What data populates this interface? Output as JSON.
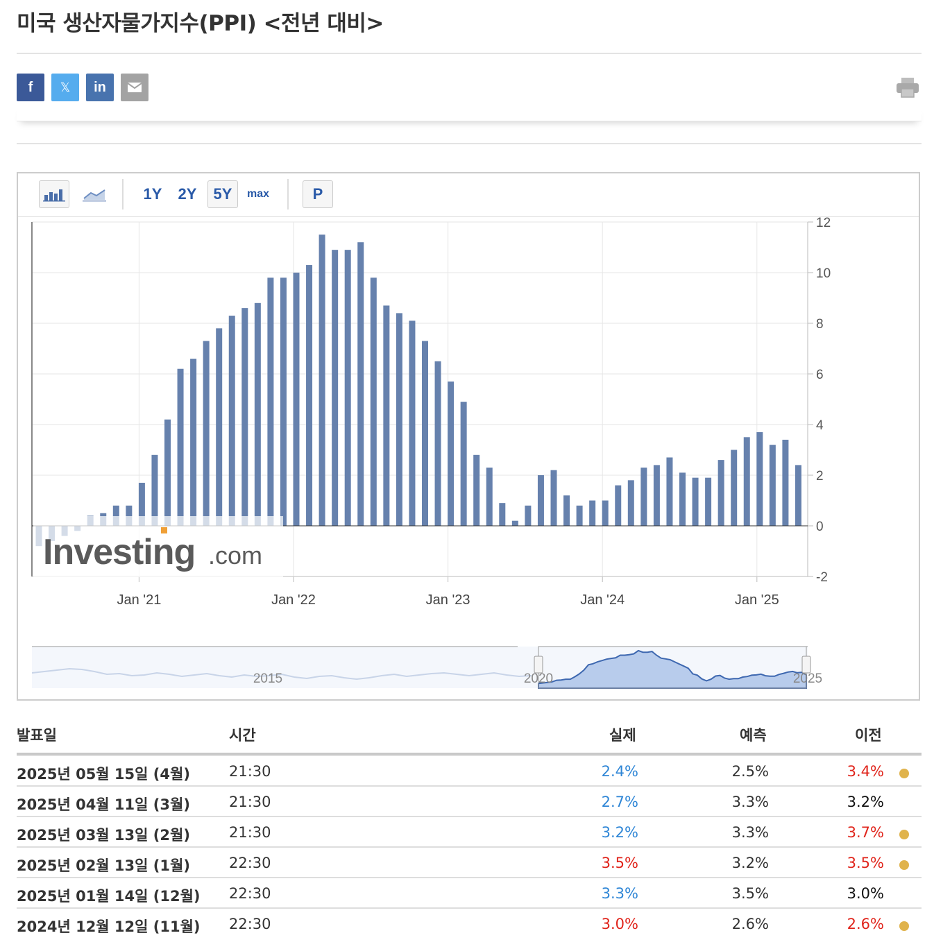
{
  "page": {
    "title": "미국 생산자물가지수(PPI) <전년 대비>"
  },
  "share": {
    "facebook": "f",
    "twitter": "𝕏",
    "linkedin": "in"
  },
  "toolbar": {
    "range_1y": "1Y",
    "range_2y": "2Y",
    "range_5y": "5Y",
    "range_max": "max",
    "p_button": "P"
  },
  "chart_data": {
    "type": "bar",
    "x": [
      "2020-05",
      "2020-06",
      "2020-07",
      "2020-08",
      "2020-09",
      "2020-10",
      "2020-11",
      "2020-12",
      "2021-01",
      "2021-02",
      "2021-03",
      "2021-04",
      "2021-05",
      "2021-06",
      "2021-07",
      "2021-08",
      "2021-09",
      "2021-10",
      "2021-11",
      "2021-12",
      "2022-01",
      "2022-02",
      "2022-03",
      "2022-04",
      "2022-05",
      "2022-06",
      "2022-07",
      "2022-08",
      "2022-09",
      "2022-10",
      "2022-11",
      "2022-12",
      "2023-01",
      "2023-02",
      "2023-03",
      "2023-04",
      "2023-05",
      "2023-06",
      "2023-07",
      "2023-08",
      "2023-09",
      "2023-10",
      "2023-11",
      "2023-12",
      "2024-01",
      "2024-02",
      "2024-03",
      "2024-04",
      "2024-05",
      "2024-06",
      "2024-07",
      "2024-08",
      "2024-09",
      "2024-10",
      "2024-11",
      "2024-12",
      "2025-01",
      "2025-02",
      "2025-03",
      "2025-04"
    ],
    "values": [
      -0.8,
      -0.6,
      -0.4,
      -0.2,
      0.4,
      0.5,
      0.8,
      0.8,
      1.7,
      2.8,
      4.2,
      6.2,
      6.6,
      7.3,
      7.8,
      8.3,
      8.6,
      8.8,
      9.8,
      9.8,
      10.0,
      10.3,
      11.5,
      10.9,
      10.9,
      11.2,
      9.8,
      8.7,
      8.4,
      8.1,
      7.3,
      6.5,
      5.7,
      4.9,
      2.8,
      2.3,
      0.9,
      0.2,
      0.8,
      2.0,
      2.2,
      1.2,
      0.8,
      1.0,
      1.0,
      1.6,
      1.8,
      2.3,
      2.4,
      2.7,
      2.1,
      1.9,
      1.9,
      2.6,
      3.0,
      3.5,
      3.7,
      3.2,
      3.4,
      2.4
    ],
    "ylim": [
      -2,
      12
    ],
    "yticks": [
      -2,
      0,
      2,
      4,
      6,
      8,
      10,
      12
    ],
    "xtick_labels": [
      "Jan '21",
      "Jan '22",
      "Jan '23",
      "Jan '24",
      "Jan '25"
    ],
    "watermark": "Investing.com",
    "navigator_labels": [
      "2015",
      "2020",
      "2025"
    ],
    "bar_color": "#6681ad"
  },
  "table": {
    "headers": {
      "date": "발표일",
      "time": "시간",
      "actual": "실제",
      "forecast": "예측",
      "previous": "이전"
    },
    "rows": [
      {
        "date": "2025년 05월 15일 (4월)",
        "time": "21:30",
        "actual": "2.4%",
        "actual_color": "#2f86d6",
        "forecast": "2.5%",
        "previous": "3.4%",
        "previous_color": "#e0241b",
        "revised": true
      },
      {
        "date": "2025년 04월 11일 (3월)",
        "time": "21:30",
        "actual": "2.7%",
        "actual_color": "#2f86d6",
        "forecast": "3.3%",
        "previous": "3.2%",
        "previous_color": "#111111",
        "revised": false
      },
      {
        "date": "2025년 03월 13일 (2월)",
        "time": "21:30",
        "actual": "3.2%",
        "actual_color": "#2f86d6",
        "forecast": "3.3%",
        "previous": "3.7%",
        "previous_color": "#e0241b",
        "revised": true
      },
      {
        "date": "2025년 02월 13일 (1월)",
        "time": "22:30",
        "actual": "3.5%",
        "actual_color": "#e0241b",
        "forecast": "3.2%",
        "previous": "3.5%",
        "previous_color": "#e0241b",
        "revised": true
      },
      {
        "date": "2025년 01월 14일 (12월)",
        "time": "22:30",
        "actual": "3.3%",
        "actual_color": "#2f86d6",
        "forecast": "3.5%",
        "previous": "3.0%",
        "previous_color": "#111111",
        "revised": false
      },
      {
        "date": "2024년 12월 12일 (11월)",
        "time": "22:30",
        "actual": "3.0%",
        "actual_color": "#e0241b",
        "forecast": "2.6%",
        "previous": "2.6%",
        "previous_color": "#e0241b",
        "revised": true
      }
    ]
  }
}
